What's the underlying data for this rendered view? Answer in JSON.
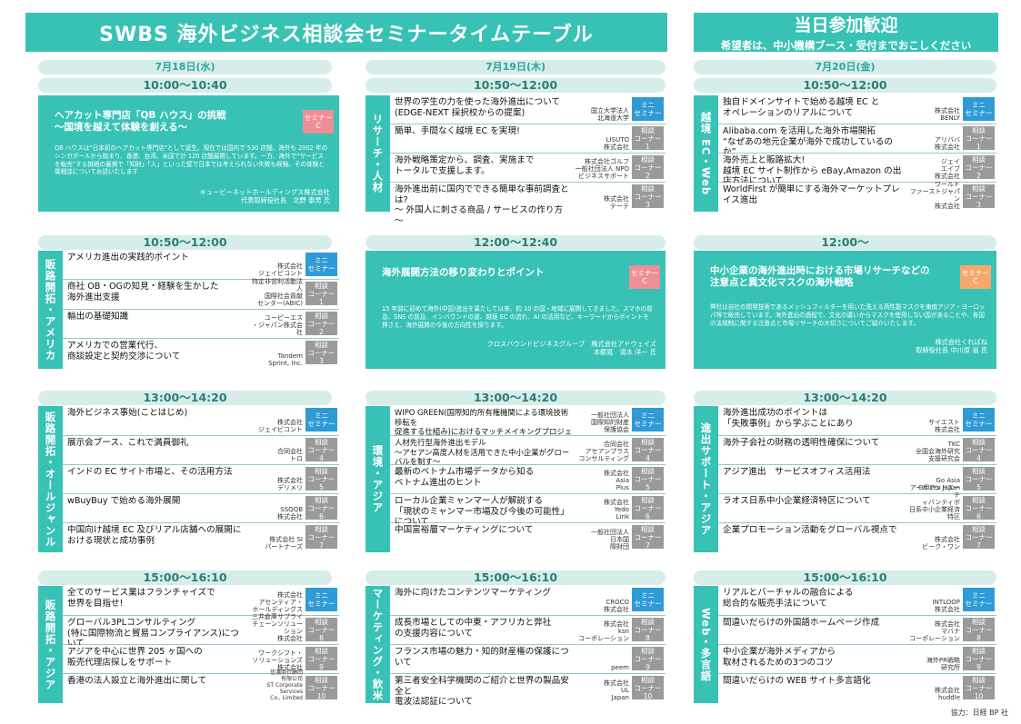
{
  "header": {
    "title": "SWBS 海外ビジネス相談会セミナータイムテーブル",
    "right_title": "当日参加歓迎",
    "right_sub": "希望者は、中小機構ブース・受付までおこしください"
  },
  "days": [
    "7月18日(水)",
    "7月19日(木)",
    "7月20日(金)"
  ],
  "times": {
    "r1": [
      "10:00～10:40",
      "10:50～12:00",
      "10:50～12:00"
    ],
    "r2": [
      "10:50～12:00",
      "12:00～12:40",
      "12:00～"
    ],
    "r3": [
      "13:00～14:20",
      "13:00～14:20",
      "13:00～14:20"
    ],
    "r4": [
      "15:00～16:10",
      "15:00～16:10",
      "15:00～16:10"
    ]
  },
  "features": {
    "qb": {
      "title": "ヘアカット専門店「QB ハウス」の挑戦\n～国境を越えて体験を創える～",
      "desc": "QB ハウスは“日本初のヘアカット専門店”として誕生。現在では国内で 530 店舗、海外も 2002 年のシンガポールから始まり、香港、台湾、米国で計 120 店舗展開しています。一方、海外で“サービスを販売”する挑戦の裏側で「知財」「人」といった壁で日本では考えられない失敗も経験。その体験と挑戦談についてお話いたします",
      "speaker": "キュービーネットホールディングス株式会社\n代表取締役社長　北野 泰男 氏",
      "badge": "セミナー\nC"
    },
    "alibaba": {
      "title": "海外展開方法の移り変わりとポイント",
      "desc": "15 年前に初めて海外(中国)進出を果たして以来、約 10 の国・地域に展開してきました。スマホの普及、SNS の普及、インバウンドの波、越境 EC の流れ、AI の活用など、キーワードからポイントを押さえ、海外展開の今後の方向性を探ります。",
      "speaker": "クロスバウンドビジネスグループ　株式会社アドウェイズ\n本郷晃　清水 洋一 氏",
      "badge": "セミナー\nC"
    },
    "market": {
      "title": "中小企業の海外進出時における市場リサーチなどの\n注意点と異文化マスクの海外戦略",
      "desc": "弊社は自社の開発技術であるメッシュフィルターを用いた洗える高性能マスクを東南アジア・ヨーロッパ等で販売しています。海外進出の過程で、文化の違いからマスクを使用しない国があることや、各国の法規制に関する注意点と市場リサーチの大切さについてご紹介いたします。",
      "speaker": "株式会社くればね\n取締役社長 中川原 翁 氏",
      "badge": "セミナー\nC"
    }
  },
  "groups": {
    "c2r1": "リサーチ・人材",
    "c1r2": "販路開拓・アメリカ",
    "c3r1": "越境 EC・Web",
    "c1r3": "販路開拓・オールジャンル",
    "c2r3": "環境・アジア",
    "c3r3": "進出サポート・アジア",
    "c1r4": "販路開拓・アジア",
    "c2r4": "マーケティング・飲米",
    "c3r4": "Web・多言語"
  },
  "sessions": {
    "c2r1": [
      {
        "t": "世界の学生の力を使った海外進出について\n(EDGE-NEXT 採択校からの提案)",
        "s": "国立大学法人\n北海道大学",
        "b": "ミニ\nセミナー",
        "k": "mini"
      },
      {
        "t": "簡単、手間なく越境 EC を実現!",
        "s": "LISUTO\n株式会社",
        "b": "相談\nコーナー\n1",
        "k": "soudan"
      },
      {
        "t": "海外戦略策定から、調査、実施まで\nトータルで支援します。",
        "s": "株式会社ゴルフ\n一般社団法人 NPO\nビジネスサポート",
        "b": "相談\nコーナー\n2",
        "k": "soudan"
      },
      {
        "t": "海外進出前に国内でできる簡単な事前調査とは?\n～ 外国人に刺さる商品 / サービスの作り方 ～",
        "s": "株式会社\nテーテ",
        "b": "相談\nコーナー\n3",
        "k": "soudan"
      }
    ],
    "c3r1": [
      {
        "t": "独自ドメインサイトで始める越境 EC と\nオペレーションのリアルについて",
        "s": "株式会社\nBENLY",
        "b": "ミニ\nセミナー",
        "k": "mini"
      },
      {
        "t": "Alibaba.com を活用した海外市場開拓\n“なぜあの地元企業が海外で成功しているのか”",
        "s": "アリババ\n株式会社",
        "b": "相談\nコーナー\n1",
        "k": "soudan"
      },
      {
        "t": "海外売上と販路拡大!\n越境 EC サイト制作から eBay,Amazon の出店方法について",
        "s": "ジェイ\nエイブ\n株式会社",
        "b": "相談\nコーナー\n2",
        "k": "soudan"
      },
      {
        "t": "WorldFirst が簡単にする海外マーケットプレイス進出",
        "s": "ワールド\nファーストジャパン\n株式会社",
        "b": "相談\nコーナー\n3",
        "k": "soudan"
      }
    ],
    "c1r2": [
      {
        "t": "アメリカ進出の実践的ポイント",
        "s": "株式会社\nジェイビコント",
        "b": "ミニ\nセミナー",
        "k": "mini"
      },
      {
        "t": "商社 OB・OGの知見・経験を生かした\n海外進出支援",
        "s": "特定非営利活動法人\n国際社会貢献\nセンター(ABIC)",
        "b": "相談\nコーナー\n1",
        "k": "soudan"
      },
      {
        "t": "輸出の基礎知識",
        "s": "ユーピーエス\n・ジャパン株式会社",
        "b": "相談\nコーナー\n2",
        "k": "soudan"
      },
      {
        "t": "アメリカでの営業代行、\n商談設定と契約交渉について",
        "s": "Tandem\nSprint, Inc.",
        "b": "相談\nコーナー\n3",
        "k": "soudan"
      }
    ],
    "c1r3": [
      {
        "t": "海外ビジネス事始(ことはじめ)",
        "s": "株式会社\nジェイビコント",
        "b": "ミニ\nセミナー",
        "k": "mini"
      },
      {
        "t": "展示会ブース、これで満員御礼",
        "s": "合同会社\nトロ",
        "b": "相談\nコーナー\n4",
        "k": "soudan"
      },
      {
        "t": "インドの EC サイト市場と、その活用方法",
        "s": "株式会社\nデリメリ",
        "b": "相談\nコーナー\n5",
        "k": "soudan"
      },
      {
        "t": "wBuyBuy で始める海外展開",
        "s": "SSQQB\n株式会社",
        "b": "相談\nコーナー\n6",
        "k": "soudan"
      },
      {
        "t": "中国向け越境 EC 及びリアル店舗への展開に\nおける現状と成功事例",
        "s": "株式会社 SI\nパートナーズ",
        "b": "相談\nコーナー\n7",
        "k": "soudan"
      }
    ],
    "c2r3": [
      {
        "t": "WIPO GREEN(国際知的所有権機関による環境技術移転を\n促進する仕組み)におけるマッチメイキングプロジェクトの紹介",
        "s": "一般社団法人\n国際知的財産\n保護協会",
        "b": "ミニ\nセミナー",
        "k": "mini"
      },
      {
        "t": "人材先行型海外進出モデル\n～アセアン高度人材を活用できた中小企業がグローバルを制す～",
        "s": "合同会社\nアセアンプラス\nコンサルティング",
        "b": "相談\nコーナー\n4",
        "k": "soudan"
      },
      {
        "t": "最新のベトナム市場データから知る\nベトナム進出のヒント",
        "s": "株式会社\nAsia\nPlus",
        "b": "相談\nコーナー\n5",
        "k": "soudan"
      },
      {
        "t": "ローカル企業ミャンマー人が解説する\n「現状のミャンマー市場及び今後の可能性」について",
        "s": "株式会社\nYedo\nLink",
        "b": "相談\nコーナー\n6",
        "k": "soudan"
      },
      {
        "t": "中国富裕層マーケティングについて",
        "s": "一般社団法人\n日本国\n際財団",
        "b": "相談\nコーナー\n7",
        "k": "soudan"
      }
    ],
    "c3r3": [
      {
        "t": "海外進出成功のポイントは\n「失敗事例」から学ぶことにあり",
        "s": "サイエスト\n株式会社",
        "b": "ミニ\nセミナー",
        "k": "mini"
      },
      {
        "t": "海外子会社の財務の透明性確保について",
        "s": "TKC\n全国会海外研究\n支援研究会",
        "b": "相談\nコーナー\n4",
        "k": "soudan"
      },
      {
        "t": "アジア進出　サービスオフィス活用法",
        "s": "Go Asia\nOffices Japan",
        "b": "相談\nコーナー\n5",
        "k": "soudan"
      },
      {
        "t": "ラオス日系中小企業経済特区について",
        "s": "アールアンドエーテ\nィバンティボ\n日系中小企業経済特区",
        "b": "相談\nコーナー\n6",
        "k": "soudan"
      },
      {
        "t": "企業プロモーション活動をグローバル視点で",
        "s": "株式会社\nビーク・ワン",
        "b": "相談\nコーナー\n7",
        "k": "soudan"
      }
    ],
    "c1r4": [
      {
        "t": "全てのサービス業はフランチャイズで\n世界を目指せ!",
        "s": "株式会社\nアセンティア・\nホールディングス",
        "b": "ミニ\nセミナー",
        "k": "mini"
      },
      {
        "t": "グローバル3PLコンサルティング\n(特に国際物流と貿易コンプライアンス)について",
        "s": "三井倉庫サプライ\nチェーンソリューション\n株式会社",
        "b": "相談\nコーナー\n8",
        "k": "soudan"
      },
      {
        "t": "アジアを中心に世界 205 ヶ国への\n販売代理店探しをサポート",
        "s": "ワークシフト・\nソリューションズ\n株式会社",
        "b": "相談\nコーナー\n9",
        "k": "soudan"
      },
      {
        "t": "香港の法人設立と海外進出に関して",
        "s": "信濃商社顧問\n有限公司\nST Corporate Services\nCo., Limited",
        "b": "相談\nコーナー\n10",
        "k": "soudan"
      }
    ],
    "c2r4": [
      {
        "t": "海外に向けたコンテンツマーケティング",
        "s": "CROCO\n株式会社",
        "b": "ミニ\nセミナー",
        "k": "mini"
      },
      {
        "t": "成長市場としての中東・アフリカと弊社\nの支援内容について",
        "s": "株式会社\nksn\nコーポレーション",
        "b": "相談\nコーナー\n8",
        "k": "soudan"
      },
      {
        "t": "フランス市場の魅力・知的財産権の保護について",
        "s": "peem",
        "b": "相談\nコーナー\n9",
        "k": "soudan"
      },
      {
        "t": "第三者安全科学機関のご紹介と世界の製品安全と\n電波法認証について",
        "s": "株式会社\nUL\nJapan",
        "b": "相談\nコーナー\n10",
        "k": "soudan"
      }
    ],
    "c3r4": [
      {
        "t": "リアルとバーチャルの融合による\n総合的な販売手法について",
        "s": "INTLOOP\n株式会社",
        "b": "ミニ\nセミナー",
        "k": "mini"
      },
      {
        "t": "間違いだらけの外国語ホームページ作成",
        "s": "株式会社\nマバナ\nコーポレーション",
        "b": "相談\nコーナー\n8",
        "k": "soudan"
      },
      {
        "t": "中小企業が海外メディアから\n取材されるための3つのコツ",
        "s": "海外PR戦略\n研究所",
        "b": "相談\nコーナー\n9",
        "k": "soudan"
      },
      {
        "t": "間違いだらけの WEB サイト多言語化",
        "s": "株式会社\nhuddle",
        "b": "相談\nコーナー\n10",
        "k": "soudan"
      }
    ]
  },
  "credit": "協力：日経 BP 社"
}
